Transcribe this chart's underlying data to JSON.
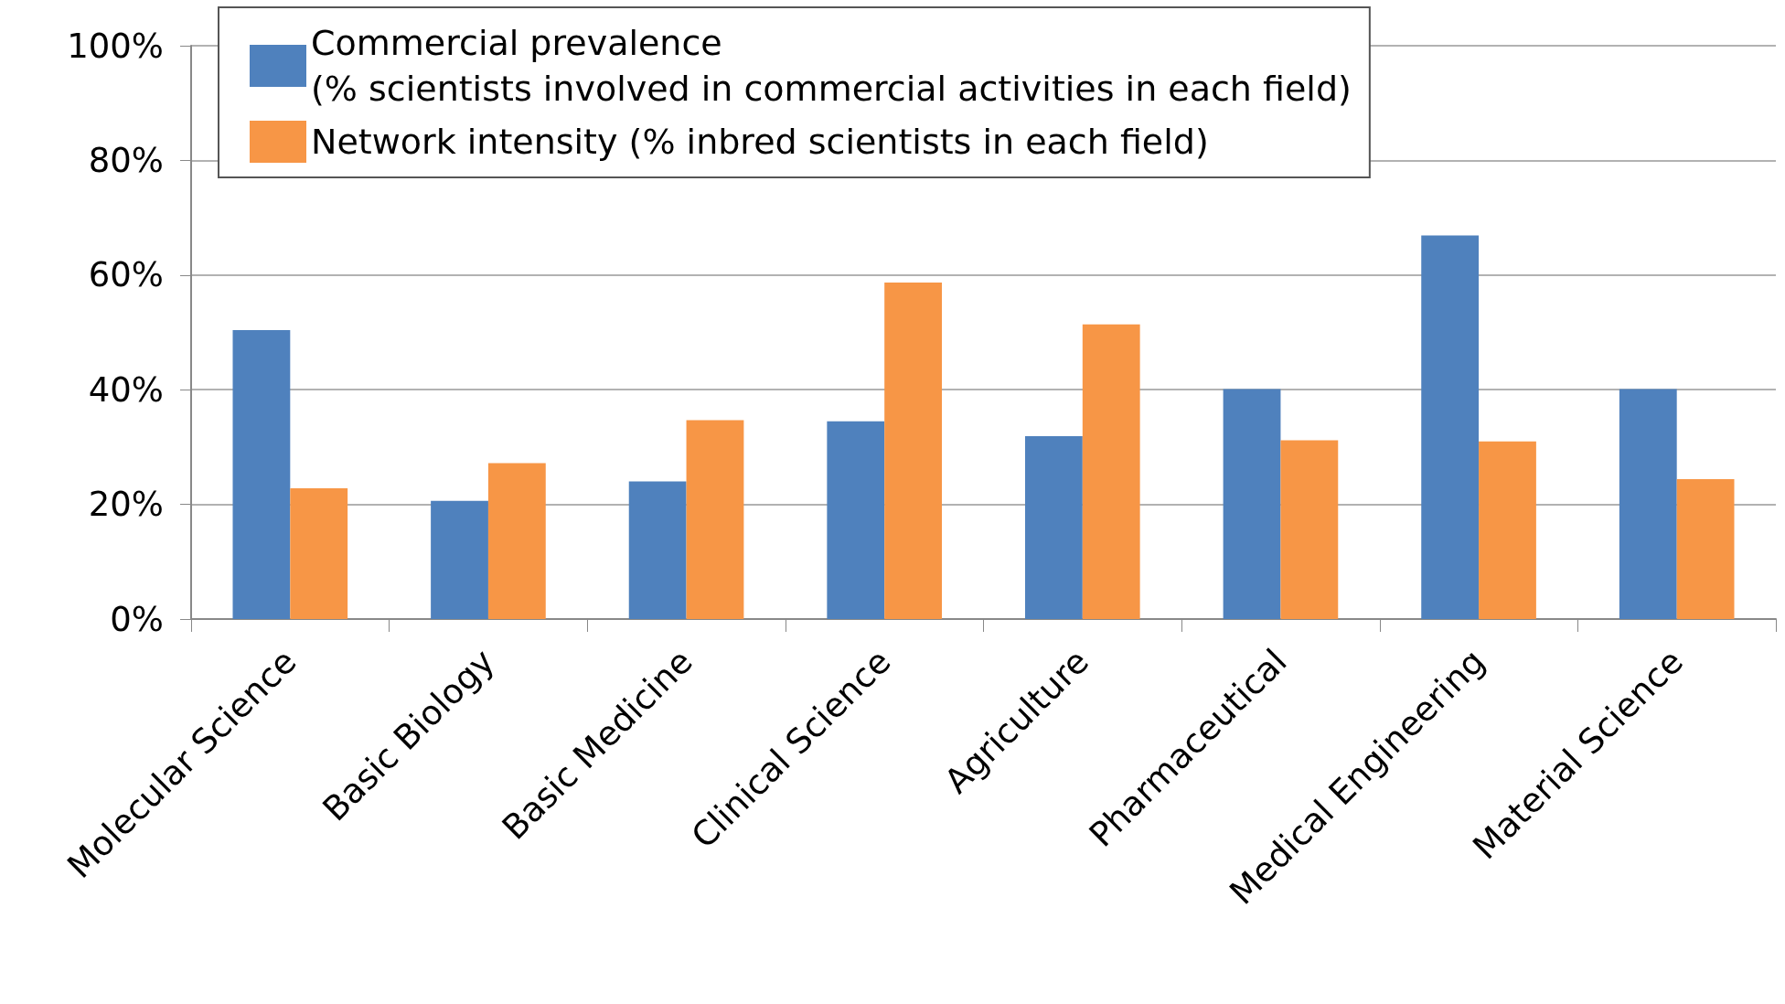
{
  "chart_data": {
    "type": "bar",
    "categories": [
      "Molecular Science",
      "Basic Biology",
      "Basic Medicine",
      "Clinical Science",
      "Agriculture",
      "Pharmaceutical",
      "Medical Engineering",
      "Material Science"
    ],
    "series": [
      {
        "name": "Commercial prevalence\n(% scientists involved in commercial activities in each field)",
        "color": "#4f81bd",
        "values": [
          50.4,
          20.6,
          24.0,
          34.5,
          31.9,
          40.1,
          66.9,
          40.1
        ]
      },
      {
        "name": "Network intensity (% inbred scientists in each field)",
        "color": "#f79646",
        "values": [
          22.8,
          27.2,
          34.7,
          58.7,
          51.4,
          31.2,
          31.0,
          24.4
        ]
      }
    ],
    "ylim": [
      0,
      100
    ],
    "yticks": [
      {
        "value": 0,
        "label": "0%"
      },
      {
        "value": 20,
        "label": "20%"
      },
      {
        "value": 40,
        "label": "40%"
      },
      {
        "value": 60,
        "label": "60%"
      },
      {
        "value": 80,
        "label": "80%"
      },
      {
        "value": 100,
        "label": "100%"
      }
    ],
    "grid": "y",
    "legend": "top"
  }
}
